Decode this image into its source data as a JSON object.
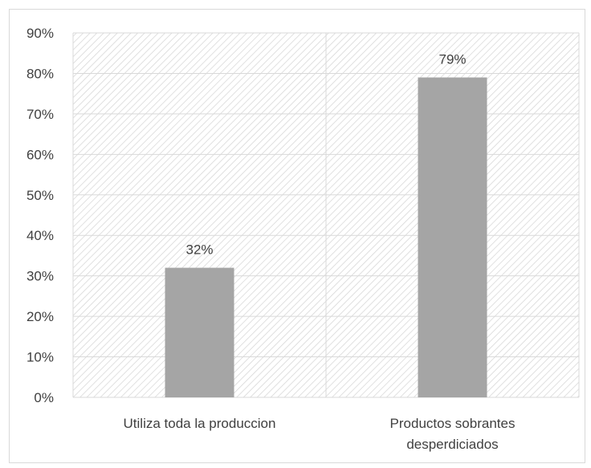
{
  "chart_data": {
    "type": "bar",
    "categories": [
      [
        "Utiliza toda la produccion"
      ],
      [
        "Productos sobrantes",
        "desperdiciados"
      ]
    ],
    "values": [
      32,
      79
    ],
    "data_labels": [
      "32%",
      "79%"
    ],
    "ylim": [
      0,
      90
    ],
    "ytick_step": 10,
    "ytick_labels": [
      "0%",
      "10%",
      "20%",
      "30%",
      "40%",
      "50%",
      "60%",
      "70%",
      "80%",
      "90%"
    ],
    "title": "",
    "xlabel": "",
    "ylabel": "",
    "grid": true,
    "plot_fill": "diagonal-hatch",
    "bar_color": "#a5a5a5",
    "grid_color": "#d9d9d9",
    "text_color": "#404040"
  }
}
